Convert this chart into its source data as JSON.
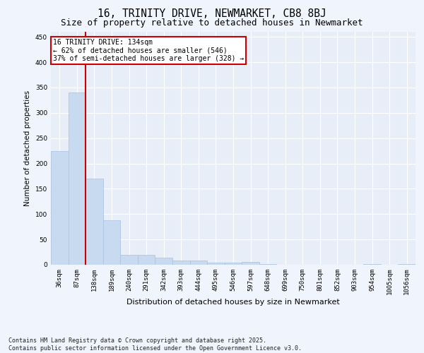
{
  "title_line1": "16, TRINITY DRIVE, NEWMARKET, CB8 8BJ",
  "title_line2": "Size of property relative to detached houses in Newmarket",
  "xlabel": "Distribution of detached houses by size in Newmarket",
  "ylabel": "Number of detached properties",
  "bar_color": "#c8daf0",
  "bar_edge_color": "#a8c0e0",
  "background_color": "#e8eef8",
  "grid_color": "#ffffff",
  "categories": [
    "36sqm",
    "87sqm",
    "138sqm",
    "189sqm",
    "240sqm",
    "291sqm",
    "342sqm",
    "393sqm",
    "444sqm",
    "495sqm",
    "546sqm",
    "597sqm",
    "648sqm",
    "699sqm",
    "750sqm",
    "801sqm",
    "852sqm",
    "903sqm",
    "954sqm",
    "1005sqm",
    "1056sqm"
  ],
  "values": [
    225,
    340,
    170,
    88,
    20,
    20,
    14,
    9,
    9,
    4,
    4,
    5,
    1,
    0,
    0,
    0,
    0,
    0,
    2,
    0,
    2
  ],
  "ylim": [
    0,
    460
  ],
  "yticks": [
    0,
    50,
    100,
    150,
    200,
    250,
    300,
    350,
    400,
    450
  ],
  "vline_color": "#cc0000",
  "annotation_title": "16 TRINITY DRIVE: 134sqm",
  "annotation_line1": "← 62% of detached houses are smaller (546)",
  "annotation_line2": "37% of semi-detached houses are larger (328) →",
  "annotation_box_color": "#ffffff",
  "annotation_box_edge_color": "#cc0000",
  "footer_line1": "Contains HM Land Registry data © Crown copyright and database right 2025.",
  "footer_line2": "Contains public sector information licensed under the Open Government Licence v3.0.",
  "title_fontsize": 10.5,
  "subtitle_fontsize": 9,
  "tick_fontsize": 6.5,
  "xlabel_fontsize": 8,
  "ylabel_fontsize": 7.5,
  "annotation_fontsize": 7,
  "footer_fontsize": 6,
  "fig_width": 6.0,
  "fig_height": 5.0,
  "fig_dpi": 100
}
